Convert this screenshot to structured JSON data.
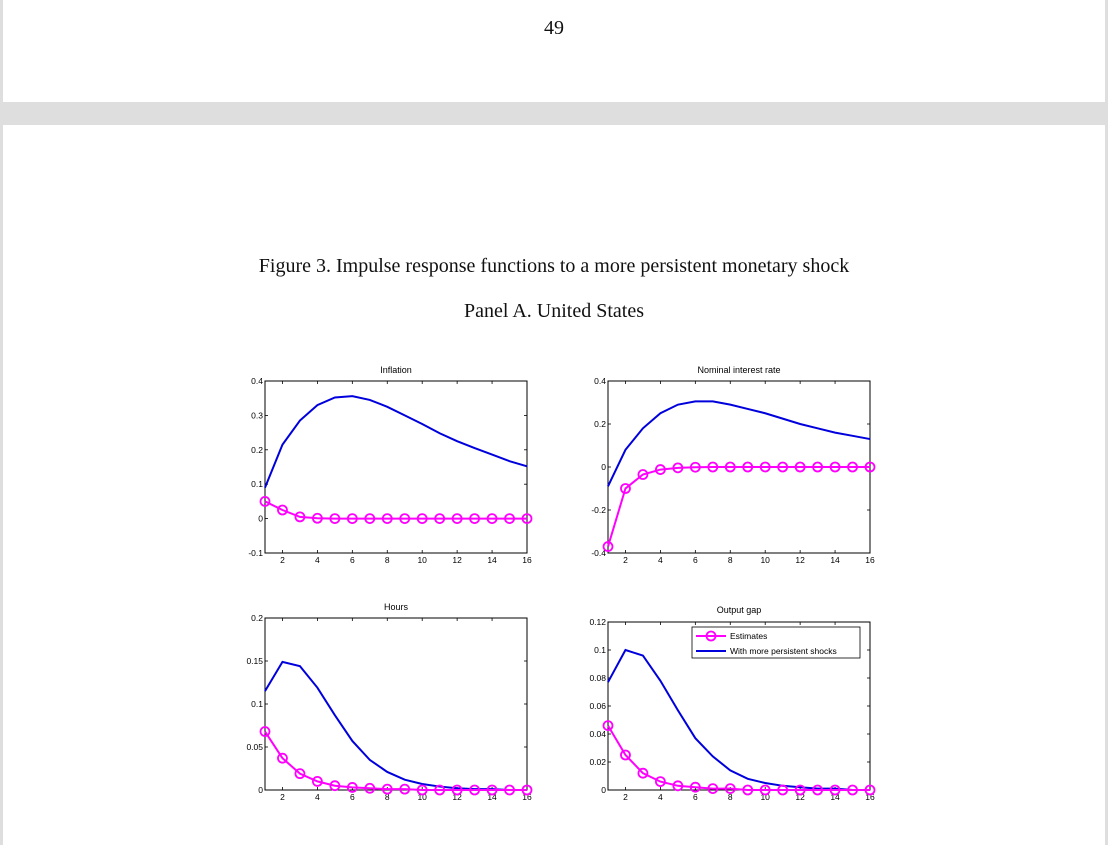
{
  "page_number": "49",
  "figure_title": "Figure 3. Impulse response functions to a more persistent monetary shock",
  "panel_title": "Panel A. United States",
  "colors": {
    "estimates": "#ff00ff",
    "persistent": "#0000dd",
    "axis": "#000000"
  },
  "chart_data": [
    {
      "type": "line",
      "title": "Inflation",
      "xlim": [
        1,
        16
      ],
      "ylim": [
        -0.1,
        0.4
      ],
      "x_ticks": [
        2,
        4,
        6,
        8,
        10,
        12,
        14,
        16
      ],
      "y_ticks": [
        -0.1,
        0,
        0.1,
        0.2,
        0.3,
        0.4
      ],
      "y_tick_labels": [
        "-0.1",
        "0",
        "0.1",
        "0.2",
        "0.3",
        "0.4"
      ],
      "x": [
        1,
        2,
        3,
        4,
        5,
        6,
        7,
        8,
        9,
        10,
        11,
        12,
        13,
        14,
        15,
        16
      ],
      "series": [
        {
          "values": [
            0.09,
            0.215,
            0.285,
            0.33,
            0.352,
            0.356,
            0.345,
            0.325,
            0.3,
            0.275,
            0.248,
            0.225,
            0.205,
            0.186,
            0.167,
            0.152
          ]
        },
        {
          "values": [
            0.05,
            0.025,
            0.005,
            0.001,
            0.0,
            0.0,
            0.0,
            0.0,
            0.0,
            0.0,
            0.0,
            0.0,
            0.0,
            0.0,
            0.0,
            0.0
          ],
          "markers": true
        }
      ]
    },
    {
      "type": "line",
      "title": "Nominal interest rate",
      "xlim": [
        1,
        16
      ],
      "ylim": [
        -0.4,
        0.4
      ],
      "x_ticks": [
        2,
        4,
        6,
        8,
        10,
        12,
        14,
        16
      ],
      "y_ticks": [
        -0.4,
        -0.2,
        0,
        0.2,
        0.4
      ],
      "y_tick_labels": [
        "-0.4",
        "-0.2",
        "0",
        "0.2",
        "0.4"
      ],
      "x": [
        1,
        2,
        3,
        4,
        5,
        6,
        7,
        8,
        9,
        10,
        11,
        12,
        13,
        14,
        15,
        16
      ],
      "series": [
        {
          "values": [
            -0.09,
            0.08,
            0.18,
            0.25,
            0.29,
            0.305,
            0.305,
            0.29,
            0.27,
            0.25,
            0.225,
            0.2,
            0.18,
            0.16,
            0.145,
            0.13
          ]
        },
        {
          "values": [
            -0.37,
            -0.1,
            -0.035,
            -0.012,
            -0.004,
            -0.001,
            0.0,
            0.0,
            0.0,
            0.0,
            0.0,
            0.0,
            0.0,
            0.0,
            0.0,
            0.0
          ],
          "markers": true
        }
      ]
    },
    {
      "type": "line",
      "title": "Hours",
      "xlim": [
        1,
        16
      ],
      "ylim": [
        0,
        0.2
      ],
      "x_ticks": [
        2,
        4,
        6,
        8,
        10,
        12,
        14,
        16
      ],
      "y_ticks": [
        0,
        0.05,
        0.1,
        0.15,
        0.2
      ],
      "y_tick_labels": [
        "0",
        "0.05",
        "0.1",
        "0.15",
        "0.2"
      ],
      "x": [
        1,
        2,
        3,
        4,
        5,
        6,
        7,
        8,
        9,
        10,
        11,
        12,
        13,
        14,
        15,
        16
      ],
      "series": [
        {
          "values": [
            0.115,
            0.149,
            0.144,
            0.119,
            0.087,
            0.057,
            0.035,
            0.021,
            0.012,
            0.007,
            0.004,
            0.002,
            0.001,
            0.001,
            0.0,
            0.0
          ]
        },
        {
          "values": [
            0.068,
            0.037,
            0.019,
            0.01,
            0.005,
            0.003,
            0.002,
            0.001,
            0.001,
            0.0,
            0.0,
            0.0,
            0.0,
            0.0,
            0.0,
            0.0
          ],
          "markers": true
        }
      ]
    },
    {
      "type": "line",
      "title": "Output gap",
      "xlim": [
        1,
        16
      ],
      "ylim": [
        0,
        0.12
      ],
      "x_ticks": [
        2,
        4,
        6,
        8,
        10,
        12,
        14,
        16
      ],
      "y_ticks": [
        0,
        0.02,
        0.04,
        0.06,
        0.08,
        0.1,
        0.12
      ],
      "y_tick_labels": [
        "0",
        "0.02",
        "0.04",
        "0.06",
        "0.08",
        "0.1",
        "0.12"
      ],
      "x": [
        1,
        2,
        3,
        4,
        5,
        6,
        7,
        8,
        9,
        10,
        11,
        12,
        13,
        14,
        15,
        16
      ],
      "legend": "top-right",
      "series": [
        {
          "name": "With more persistent shocks",
          "values": [
            0.077,
            0.1,
            0.096,
            0.078,
            0.057,
            0.037,
            0.024,
            0.014,
            0.008,
            0.005,
            0.003,
            0.002,
            0.001,
            0.001,
            0.0,
            0.0
          ]
        },
        {
          "name": "Estimates",
          "values": [
            0.046,
            0.025,
            0.012,
            0.006,
            0.003,
            0.002,
            0.001,
            0.001,
            0.0,
            0.0,
            0.0,
            0.0,
            0.0,
            0.0,
            0.0,
            0.0
          ],
          "markers": true
        }
      ]
    }
  ]
}
